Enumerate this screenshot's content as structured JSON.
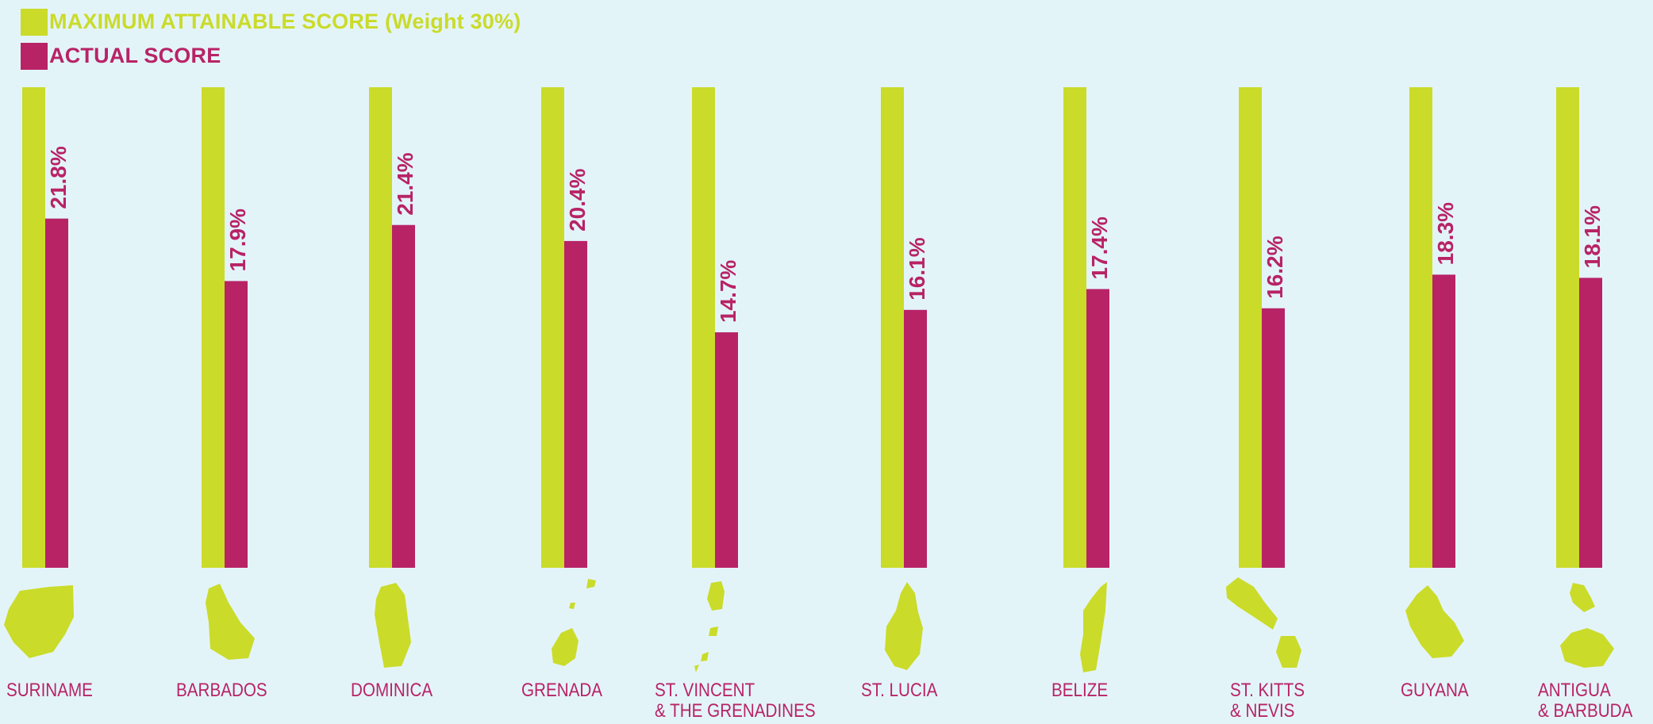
{
  "legend": {
    "max_label": "MAXIMUM ATTAINABLE SCORE (Weight 30%)",
    "actual_label": "ACTUAL SCORE"
  },
  "colors": {
    "max": "#cadb2a",
    "actual": "#b82366",
    "background": "#e3f4f9"
  },
  "chart_data": {
    "type": "bar",
    "categories": [
      "SURINAME",
      "BARBADOS",
      "DOMINICA",
      "GRENADA",
      "ST. VINCENT\n& THE GRENADINES",
      "ST. LUCIA",
      "BELIZE",
      "ST. KITTS\n& NEVIS",
      "GUYANA",
      "ANTIGUA\n& BARBUDA"
    ],
    "series": [
      {
        "name": "MAXIMUM ATTAINABLE SCORE (Weight 30%)",
        "values": [
          30,
          30,
          30,
          30,
          30,
          30,
          30,
          30,
          30,
          30
        ]
      },
      {
        "name": "ACTUAL SCORE",
        "values": [
          21.8,
          17.9,
          21.4,
          20.4,
          14.7,
          16.1,
          17.4,
          16.2,
          18.3,
          18.1
        ]
      }
    ],
    "value_labels": [
      "21.8%",
      "17.9%",
      "21.4%",
      "20.4%",
      "14.7%",
      "16.1%",
      "17.4%",
      "16.2%",
      "18.3%",
      "18.1%"
    ],
    "ylim": [
      0,
      30
    ],
    "legend_position": "top-left",
    "grid": false
  }
}
